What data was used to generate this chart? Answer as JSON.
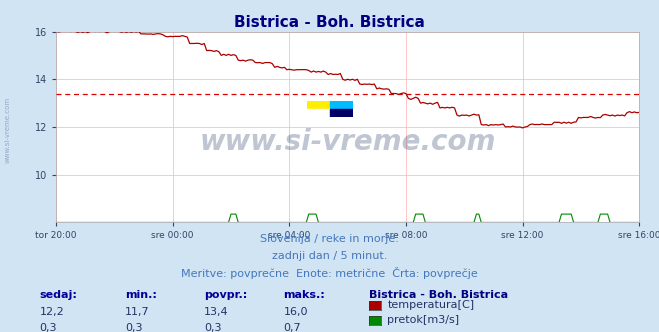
{
  "title": "Bistrica - Boh. Bistrica",
  "title_color": "#000080",
  "bg_color": "#d0e4f4",
  "plot_bg_color": "#ffffff",
  "grid_color": "#ffb0b0",
  "xlabel_ticks": [
    "tor 20:00",
    "sre 00:00",
    "sre 04:00",
    "sre 08:00",
    "sre 12:00",
    "sre 16:00"
  ],
  "xlabel_tick_positions": [
    0,
    48,
    96,
    144,
    192,
    240
  ],
  "total_points": 289,
  "temp_avg": 13.4,
  "temp_min": 11.7,
  "temp_max": 16.0,
  "temp_current": 12.2,
  "flow_avg": 0.3,
  "flow_min": 0.3,
  "flow_max": 0.7,
  "flow_current": 0.3,
  "ylim": [
    8,
    16
  ],
  "yticks": [
    10,
    12,
    14,
    16
  ],
  "temp_color": "#aa0000",
  "flow_color": "#008800",
  "avg_line_color": "#dd0000",
  "watermark": "www.si-vreme.com",
  "watermark_color": "#1a3560",
  "side_label": "www.si-vreme.com",
  "footer_line1": "Slovenija / reke in morje.",
  "footer_line2": "zadnji dan / 5 minut.",
  "footer_line3": "Meritve: povprečne  Enote: metrične  Črta: povprečje",
  "footer_color": "#4477bb",
  "legend_title": "Bistrica - Boh. Bistrica",
  "legend_color": "#000080",
  "temp_label": "temperatura[C]",
  "flow_label": "pretok[m3/s]",
  "table_headers": [
    "sedaj:",
    "min.:",
    "povpr.:",
    "maks.:"
  ],
  "table_header_color": "#000099",
  "table_value_color": "#223366",
  "table_values_temp": [
    "12,2",
    "11,7",
    "13,4",
    "16,0"
  ],
  "table_values_flow": [
    "0,3",
    "0,3",
    "0,3",
    "0,7"
  ],
  "flow_scale_in_temp": 0.7,
  "flow_base_in_temp": 8.0
}
